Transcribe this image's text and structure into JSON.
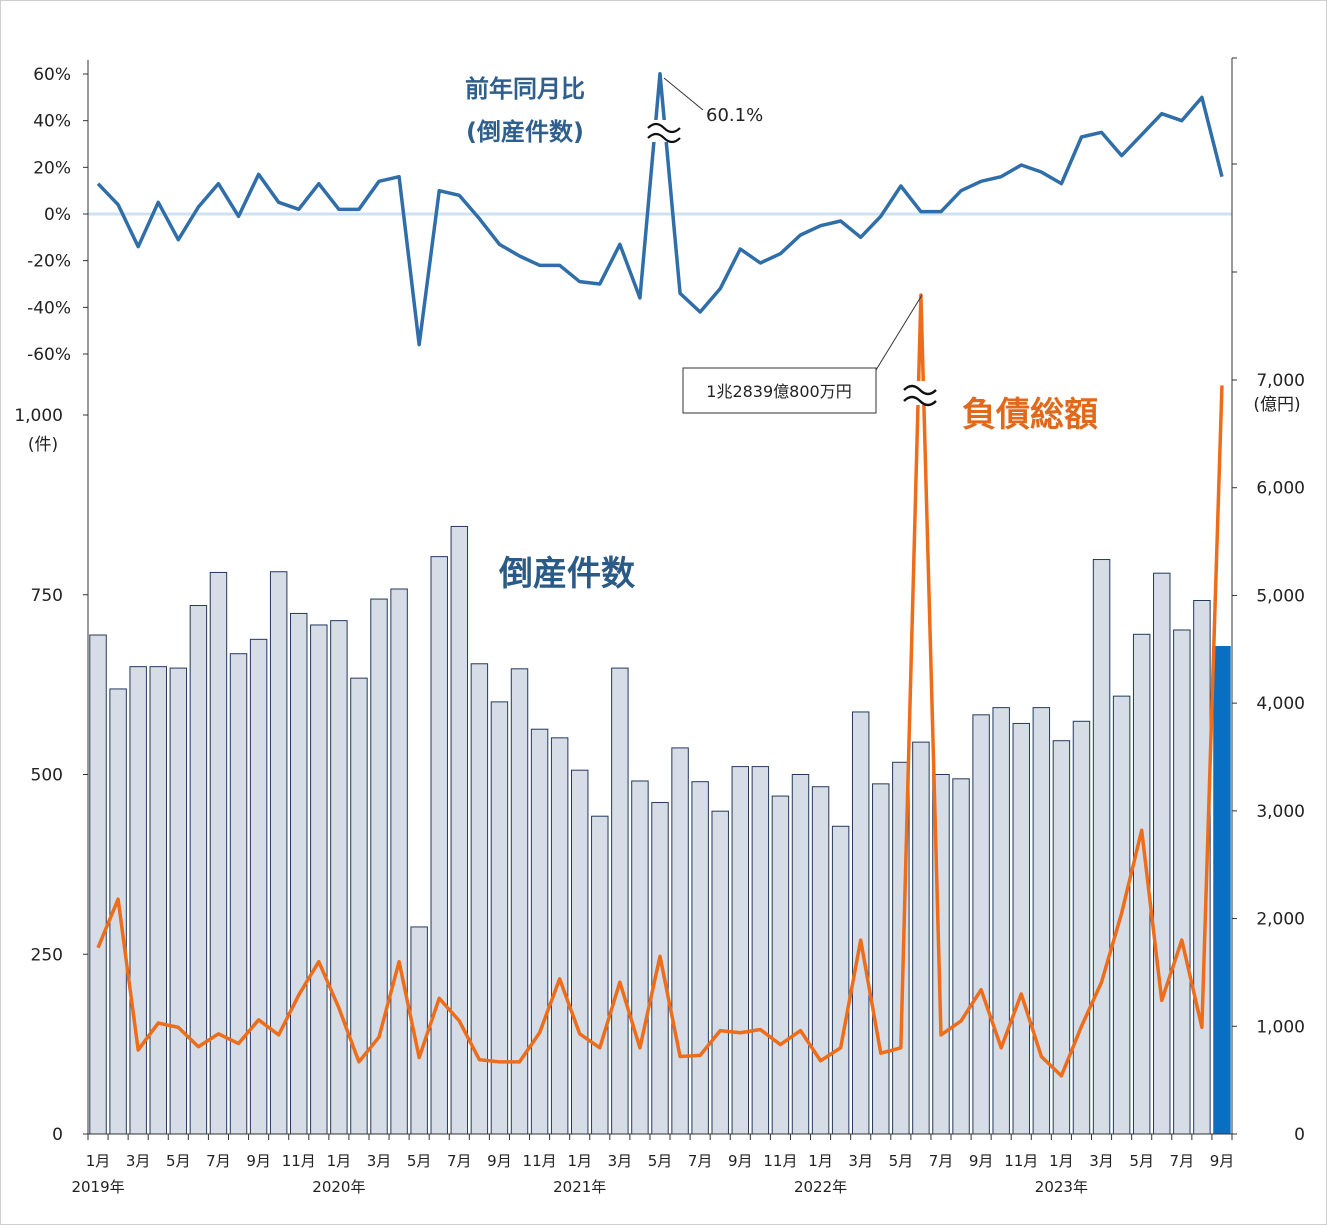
{
  "chart_data": {
    "type": "bar+line",
    "months": [
      "2019-01",
      "2019-02",
      "2019-03",
      "2019-04",
      "2019-05",
      "2019-06",
      "2019-07",
      "2019-08",
      "2019-09",
      "2019-10",
      "2019-11",
      "2019-12",
      "2020-01",
      "2020-02",
      "2020-03",
      "2020-04",
      "2020-05",
      "2020-06",
      "2020-07",
      "2020-08",
      "2020-09",
      "2020-10",
      "2020-11",
      "2020-12",
      "2021-01",
      "2021-02",
      "2021-03",
      "2021-04",
      "2021-05",
      "2021-06",
      "2021-07",
      "2021-08",
      "2021-09",
      "2021-10",
      "2021-11",
      "2021-12",
      "2022-01",
      "2022-02",
      "2022-03",
      "2022-04",
      "2022-05",
      "2022-06",
      "2022-07",
      "2022-08",
      "2022-09",
      "2022-10",
      "2022-11",
      "2022-12",
      "2023-01",
      "2023-02",
      "2023-03",
      "2023-04",
      "2023-05",
      "2023-06",
      "2023-07",
      "2023-08",
      "2023-09"
    ],
    "x_tick_labels": [
      "1月",
      "3月",
      "5月",
      "7月",
      "9月",
      "11月",
      "1月",
      "3月",
      "5月",
      "7月",
      "9月",
      "11月",
      "1月",
      "3月",
      "5月",
      "7月",
      "9月",
      "11月",
      "1月",
      "3月",
      "5月",
      "7月",
      "9月",
      "11月",
      "1月",
      "3月",
      "5月",
      "7月",
      "9月"
    ],
    "year_labels": [
      "2019年",
      "2020年",
      "2021年",
      "2022年",
      "2023年"
    ],
    "bankruptcy_counts": {
      "name": "倒産件数",
      "color": "#d6dde7",
      "highlight_color": "#0b6fc1",
      "ylabel_unit": "(件)",
      "ylim": [
        0,
        1000
      ],
      "yticks": [
        "0",
        "250",
        "500",
        "750",
        "1,000"
      ],
      "values": [
        694,
        619,
        650,
        650,
        648,
        735,
        781,
        668,
        688,
        782,
        724,
        708,
        714,
        634,
        744,
        758,
        288,
        803,
        845,
        654,
        601,
        647,
        563,
        551,
        506,
        442,
        648,
        491,
        461,
        537,
        490,
        449,
        511,
        511,
        470,
        500,
        483,
        428,
        587,
        487,
        517,
        545,
        500,
        494,
        583,
        593,
        571,
        593,
        547,
        574,
        799,
        609,
        695,
        780,
        701,
        742,
        678
      ]
    },
    "yoy_ratio": {
      "name": "前年同月比",
      "name_sub": "(倒産件数)",
      "color": "#2f6ea9",
      "ylim": [
        -60,
        60
      ],
      "yticks": [
        "60%",
        "40%",
        "20%",
        "0%",
        "-20%",
        "-40%",
        "-60%"
      ],
      "values": [
        13,
        4,
        -14,
        5,
        -11,
        3,
        13,
        -1,
        17,
        5,
        2,
        13,
        2,
        2,
        14,
        16,
        -56,
        10,
        8,
        -2,
        -13,
        -18,
        -22,
        -22,
        -29,
        -30,
        -13,
        -36,
        60.1,
        -34,
        -42,
        -32,
        -15,
        -21,
        -17,
        -9,
        -5,
        -3,
        -10,
        -1,
        12,
        1,
        1,
        10,
        14,
        16,
        21,
        18,
        13,
        33,
        35,
        25,
        34,
        43,
        40,
        50,
        16
      ],
      "annotation": "60.1%"
    },
    "total_liabilities": {
      "name": "負債総額",
      "color": "#ee6d1a",
      "unit_label": "(億円)",
      "ylim": [
        0,
        7000
      ],
      "yticks": [
        "0",
        "1,000",
        "2,000",
        "3,000",
        "4,000",
        "5,000",
        "6,000",
        "7,000"
      ],
      "values": [
        1730,
        2180,
        780,
        1030,
        990,
        810,
        930,
        840,
        1060,
        920,
        1290,
        1600,
        1170,
        670,
        900,
        1600,
        710,
        1260,
        1050,
        690,
        670,
        670,
        940,
        1440,
        930,
        800,
        1410,
        800,
        1650,
        720,
        730,
        960,
        940,
        970,
        830,
        960,
        680,
        800,
        1800,
        750,
        800,
        12839,
        920,
        1050,
        1340,
        800,
        1300,
        720,
        540,
        1000,
        1410,
        2050,
        2820,
        1240,
        1800,
        990,
        6950
      ],
      "annotation": "1兆2839億800万円",
      "spike_index": 41
    }
  }
}
